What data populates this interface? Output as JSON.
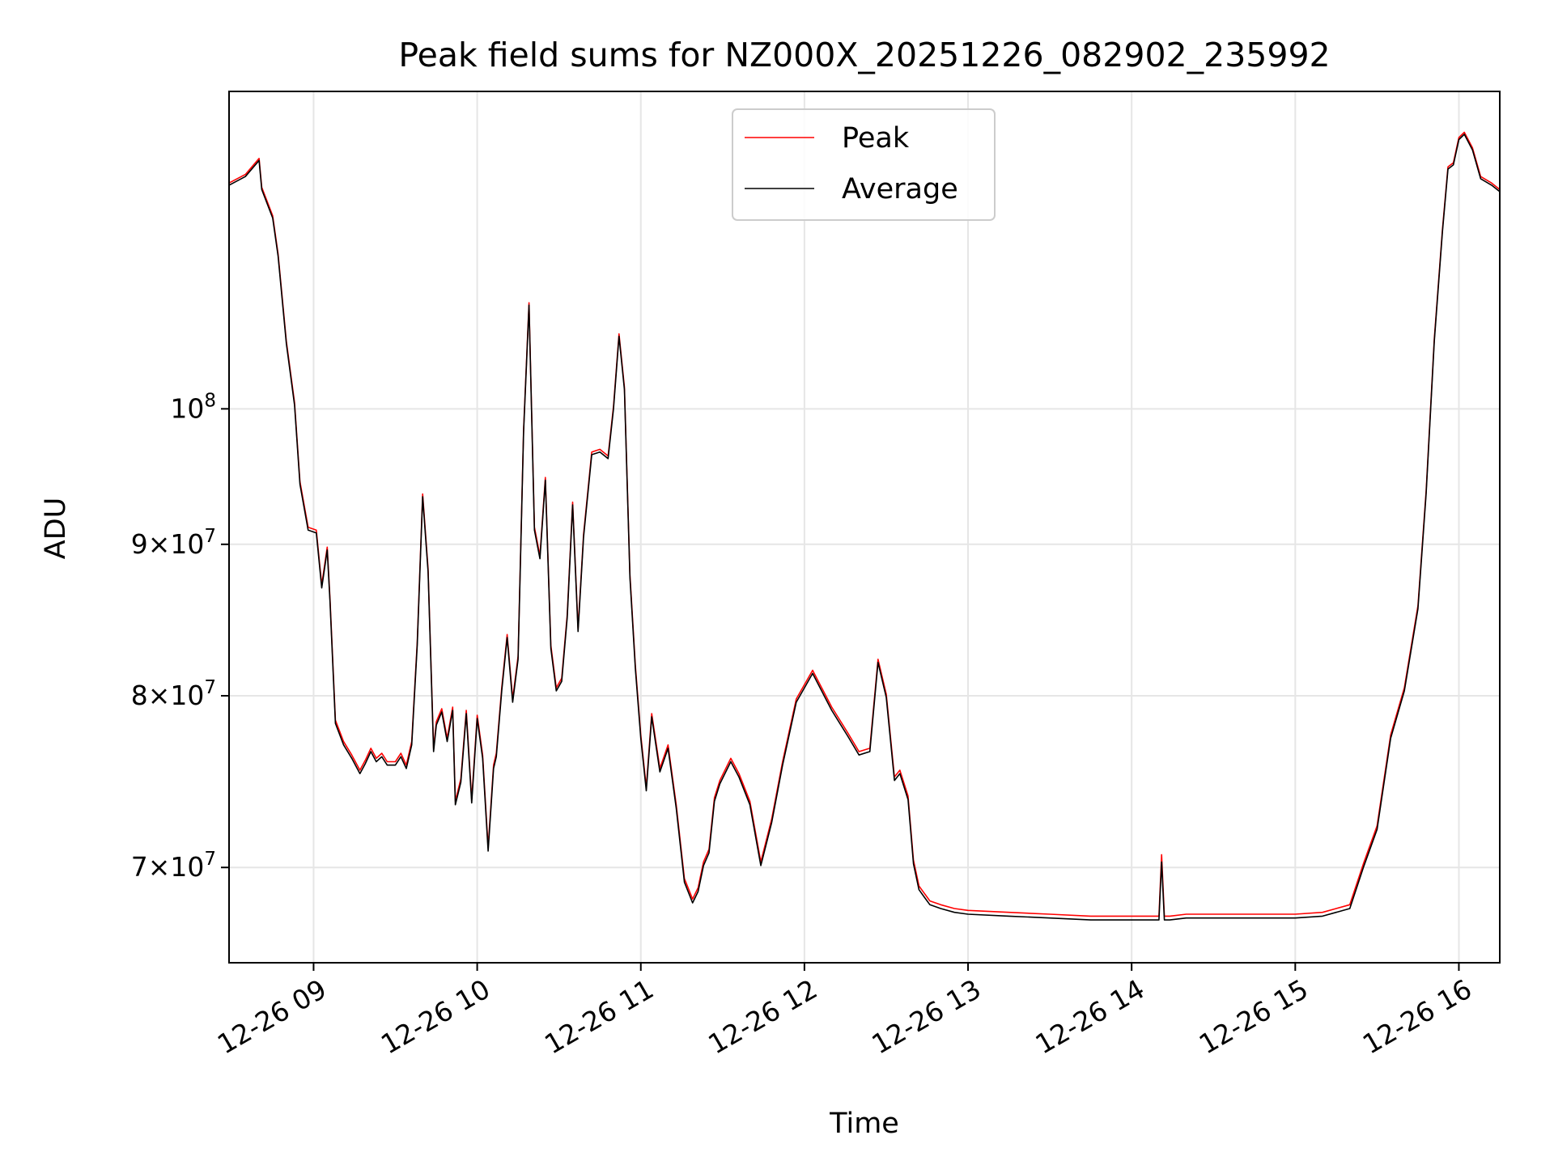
{
  "chart_data": {
    "type": "line",
    "title": "Peak field sums for NZ000X_20251226_082902_235992",
    "xlabel": "Time",
    "ylabel": "ADU",
    "yscale": "log",
    "ylim": [
      65000000,
      128000000
    ],
    "xlim": [
      "2025-12-26T08:29",
      "2025-12-26T16:15"
    ],
    "grid": true,
    "legend_position": "top-center",
    "x_ticks": [
      {
        "x": "2025-12-26T09:00",
        "label": "12-26 09"
      },
      {
        "x": "2025-12-26T10:00",
        "label": "12-26 10"
      },
      {
        "x": "2025-12-26T11:00",
        "label": "12-26 11"
      },
      {
        "x": "2025-12-26T12:00",
        "label": "12-26 12"
      },
      {
        "x": "2025-12-26T13:00",
        "label": "12-26 13"
      },
      {
        "x": "2025-12-26T14:00",
        "label": "12-26 14"
      },
      {
        "x": "2025-12-26T15:00",
        "label": "12-26 15"
      },
      {
        "x": "2025-12-26T16:00",
        "label": "12-26 16"
      }
    ],
    "y_ticks": [
      {
        "y": 70000000,
        "mant": "7",
        "exp": "7"
      },
      {
        "y": 80000000,
        "mant": "8",
        "exp": "7"
      },
      {
        "y": 90000000,
        "mant": "9",
        "exp": "7"
      },
      {
        "y": 100000000,
        "mant": "",
        "exp": "8"
      }
    ],
    "x": [
      "2025-12-26T08:29",
      "2025-12-26T08:35",
      "2025-12-26T08:40",
      "2025-12-26T08:41",
      "2025-12-26T08:45",
      "2025-12-26T08:47",
      "2025-12-26T08:50",
      "2025-12-26T08:53",
      "2025-12-26T08:55",
      "2025-12-26T08:58",
      "2025-12-26T09:01",
      "2025-12-26T09:03",
      "2025-12-26T09:05",
      "2025-12-26T09:06",
      "2025-12-26T09:08",
      "2025-12-26T09:11",
      "2025-12-26T09:14",
      "2025-12-26T09:17",
      "2025-12-26T09:19",
      "2025-12-26T09:21",
      "2025-12-26T09:23",
      "2025-12-26T09:25",
      "2025-12-26T09:27",
      "2025-12-26T09:30",
      "2025-12-26T09:32",
      "2025-12-26T09:34",
      "2025-12-26T09:36",
      "2025-12-26T09:38",
      "2025-12-26T09:40",
      "2025-12-26T09:42",
      "2025-12-26T09:44",
      "2025-12-26T09:45",
      "2025-12-26T09:47",
      "2025-12-26T09:49",
      "2025-12-26T09:51",
      "2025-12-26T09:52",
      "2025-12-26T09:54",
      "2025-12-26T09:56",
      "2025-12-26T09:58",
      "2025-12-26T10:00",
      "2025-12-26T10:02",
      "2025-12-26T10:04",
      "2025-12-26T10:06",
      "2025-12-26T10:07",
      "2025-12-26T10:09",
      "2025-12-26T10:11",
      "2025-12-26T10:13",
      "2025-12-26T10:15",
      "2025-12-26T10:17",
      "2025-12-26T10:19",
      "2025-12-26T10:21",
      "2025-12-26T10:23",
      "2025-12-26T10:25",
      "2025-12-26T10:27",
      "2025-12-26T10:29",
      "2025-12-26T10:31",
      "2025-12-26T10:33",
      "2025-12-26T10:35",
      "2025-12-26T10:37",
      "2025-12-26T10:39",
      "2025-12-26T10:42",
      "2025-12-26T10:45",
      "2025-12-26T10:48",
      "2025-12-26T10:50",
      "2025-12-26T10:52",
      "2025-12-26T10:54",
      "2025-12-26T10:56",
      "2025-12-26T10:58",
      "2025-12-26T11:00",
      "2025-12-26T11:02",
      "2025-12-26T11:04",
      "2025-12-26T11:07",
      "2025-12-26T11:10",
      "2025-12-26T11:13",
      "2025-12-26T11:16",
      "2025-12-26T11:19",
      "2025-12-26T11:21",
      "2025-12-26T11:23",
      "2025-12-26T11:25",
      "2025-12-26T11:27",
      "2025-12-26T11:29",
      "2025-12-26T11:33",
      "2025-12-26T11:36",
      "2025-12-26T11:40",
      "2025-12-26T11:44",
      "2025-12-26T11:48",
      "2025-12-26T11:52",
      "2025-12-26T11:57",
      "2025-12-26T12:03",
      "2025-12-26T12:10",
      "2025-12-26T12:16",
      "2025-12-26T12:20",
      "2025-12-26T12:24",
      "2025-12-26T12:27",
      "2025-12-26T12:30",
      "2025-12-26T12:33",
      "2025-12-26T12:35",
      "2025-12-26T12:38",
      "2025-12-26T12:40",
      "2025-12-26T12:42",
      "2025-12-26T12:44",
      "2025-12-26T12:46",
      "2025-12-26T12:50",
      "2025-12-26T12:55",
      "2025-12-26T13:00",
      "2025-12-26T13:15",
      "2025-12-26T13:30",
      "2025-12-26T13:45",
      "2025-12-26T14:00",
      "2025-12-26T14:10",
      "2025-12-26T14:11",
      "2025-12-26T14:12",
      "2025-12-26T14:14",
      "2025-12-26T14:20",
      "2025-12-26T14:35",
      "2025-12-26T14:50",
      "2025-12-26T15:00",
      "2025-12-26T15:10",
      "2025-12-26T15:20",
      "2025-12-26T15:25",
      "2025-12-26T15:30",
      "2025-12-26T15:35",
      "2025-12-26T15:40",
      "2025-12-26T15:45",
      "2025-12-26T15:48",
      "2025-12-26T15:51",
      "2025-12-26T15:54",
      "2025-12-26T15:56",
      "2025-12-26T15:58",
      "2025-12-26T16:00",
      "2025-12-26T16:02",
      "2025-12-26T16:05",
      "2025-12-26T16:08",
      "2025-12-26T16:12",
      "2025-12-26T16:15"
    ],
    "series": [
      {
        "name": "Peak",
        "color": "#ff0000",
        "values": [
          119200000,
          120000000,
          121500000,
          118800000,
          116200000,
          112800000,
          105400000,
          100500000,
          94500000,
          91200000,
          91000000,
          87200000,
          89800000,
          86300000,
          78500000,
          77200000,
          76400000,
          75500000,
          76100000,
          76800000,
          76200000,
          76500000,
          76000000,
          76000000,
          76500000,
          75800000,
          77200000,
          83400000,
          93600000,
          88300000,
          76800000,
          78400000,
          79200000,
          77400000,
          79300000,
          73700000,
          75000000,
          79100000,
          73800000,
          78800000,
          76400000,
          71100000,
          75800000,
          76500000,
          80500000,
          83900000,
          79800000,
          82500000,
          98400000,
          108600000,
          91200000,
          89200000,
          94800000,
          83200000,
          80500000,
          81100000,
          85200000,
          93000000,
          84300000,
          90700000,
          96700000,
          96900000,
          96400000,
          100200000,
          106000000,
          101700000,
          87900000,
          81900000,
          77600000,
          74500000,
          78900000,
          75600000,
          77000000,
          73500000,
          69400000,
          68300000,
          68900000,
          70300000,
          71000000,
          73900000,
          74900000,
          76200000,
          75300000,
          73700000,
          70300000,
          72700000,
          76000000,
          79800000,
          81600000,
          79300000,
          77700000,
          76600000,
          76800000,
          82300000,
          80100000,
          75100000,
          75500000,
          74000000,
          70400000,
          69000000,
          68600000,
          68200000,
          68000000,
          67800000,
          67700000,
          67600000,
          67500000,
          67400000,
          67400000,
          67400000,
          70700000,
          67400000,
          67400000,
          67500000,
          67500000,
          67500000,
          67500000,
          67600000,
          68000000,
          70200000,
          72300000,
          77600000,
          80500000,
          85800000,
          93800000,
          105600000,
          115000000,
          120700000,
          121100000,
          123500000,
          124000000,
          122500000,
          119800000,
          119200000,
          118600000
        ]
      },
      {
        "name": "Average",
        "color": "#000000",
        "values": [
          119000000,
          119800000,
          121300000,
          118600000,
          116000000,
          112600000,
          105200000,
          100300000,
          94300000,
          91000000,
          90800000,
          87000000,
          89600000,
          86100000,
          78300000,
          77000000,
          76200000,
          75300000,
          75900000,
          76600000,
          76000000,
          76300000,
          75800000,
          75800000,
          76300000,
          75600000,
          77000000,
          83200000,
          93400000,
          88100000,
          76600000,
          78200000,
          79000000,
          77200000,
          79100000,
          73500000,
          74800000,
          78900000,
          73600000,
          78600000,
          76200000,
          70900000,
          75600000,
          76300000,
          80300000,
          83700000,
          79600000,
          82300000,
          98200000,
          108400000,
          91000000,
          89000000,
          94600000,
          83000000,
          80300000,
          80900000,
          85000000,
          92800000,
          84100000,
          90500000,
          96500000,
          96700000,
          96200000,
          100000000,
          105800000,
          101500000,
          87700000,
          81700000,
          77400000,
          74300000,
          78700000,
          75400000,
          76800000,
          73300000,
          69200000,
          68100000,
          68700000,
          70100000,
          70800000,
          73700000,
          74700000,
          76000000,
          75100000,
          73500000,
          70100000,
          72500000,
          75800000,
          79600000,
          81400000,
          79100000,
          77500000,
          76400000,
          76600000,
          82100000,
          79900000,
          74900000,
          75300000,
          73800000,
          70200000,
          68800000,
          68400000,
          68000000,
          67800000,
          67600000,
          67500000,
          67400000,
          67300000,
          67200000,
          67200000,
          67200000,
          70300000,
          67200000,
          67200000,
          67300000,
          67300000,
          67300000,
          67300000,
          67400000,
          67800000,
          70000000,
          72100000,
          77400000,
          80300000,
          85600000,
          93600000,
          105400000,
          114800000,
          120500000,
          120900000,
          123300000,
          123800000,
          122300000,
          119600000,
          119000000,
          118400000
        ]
      }
    ]
  }
}
